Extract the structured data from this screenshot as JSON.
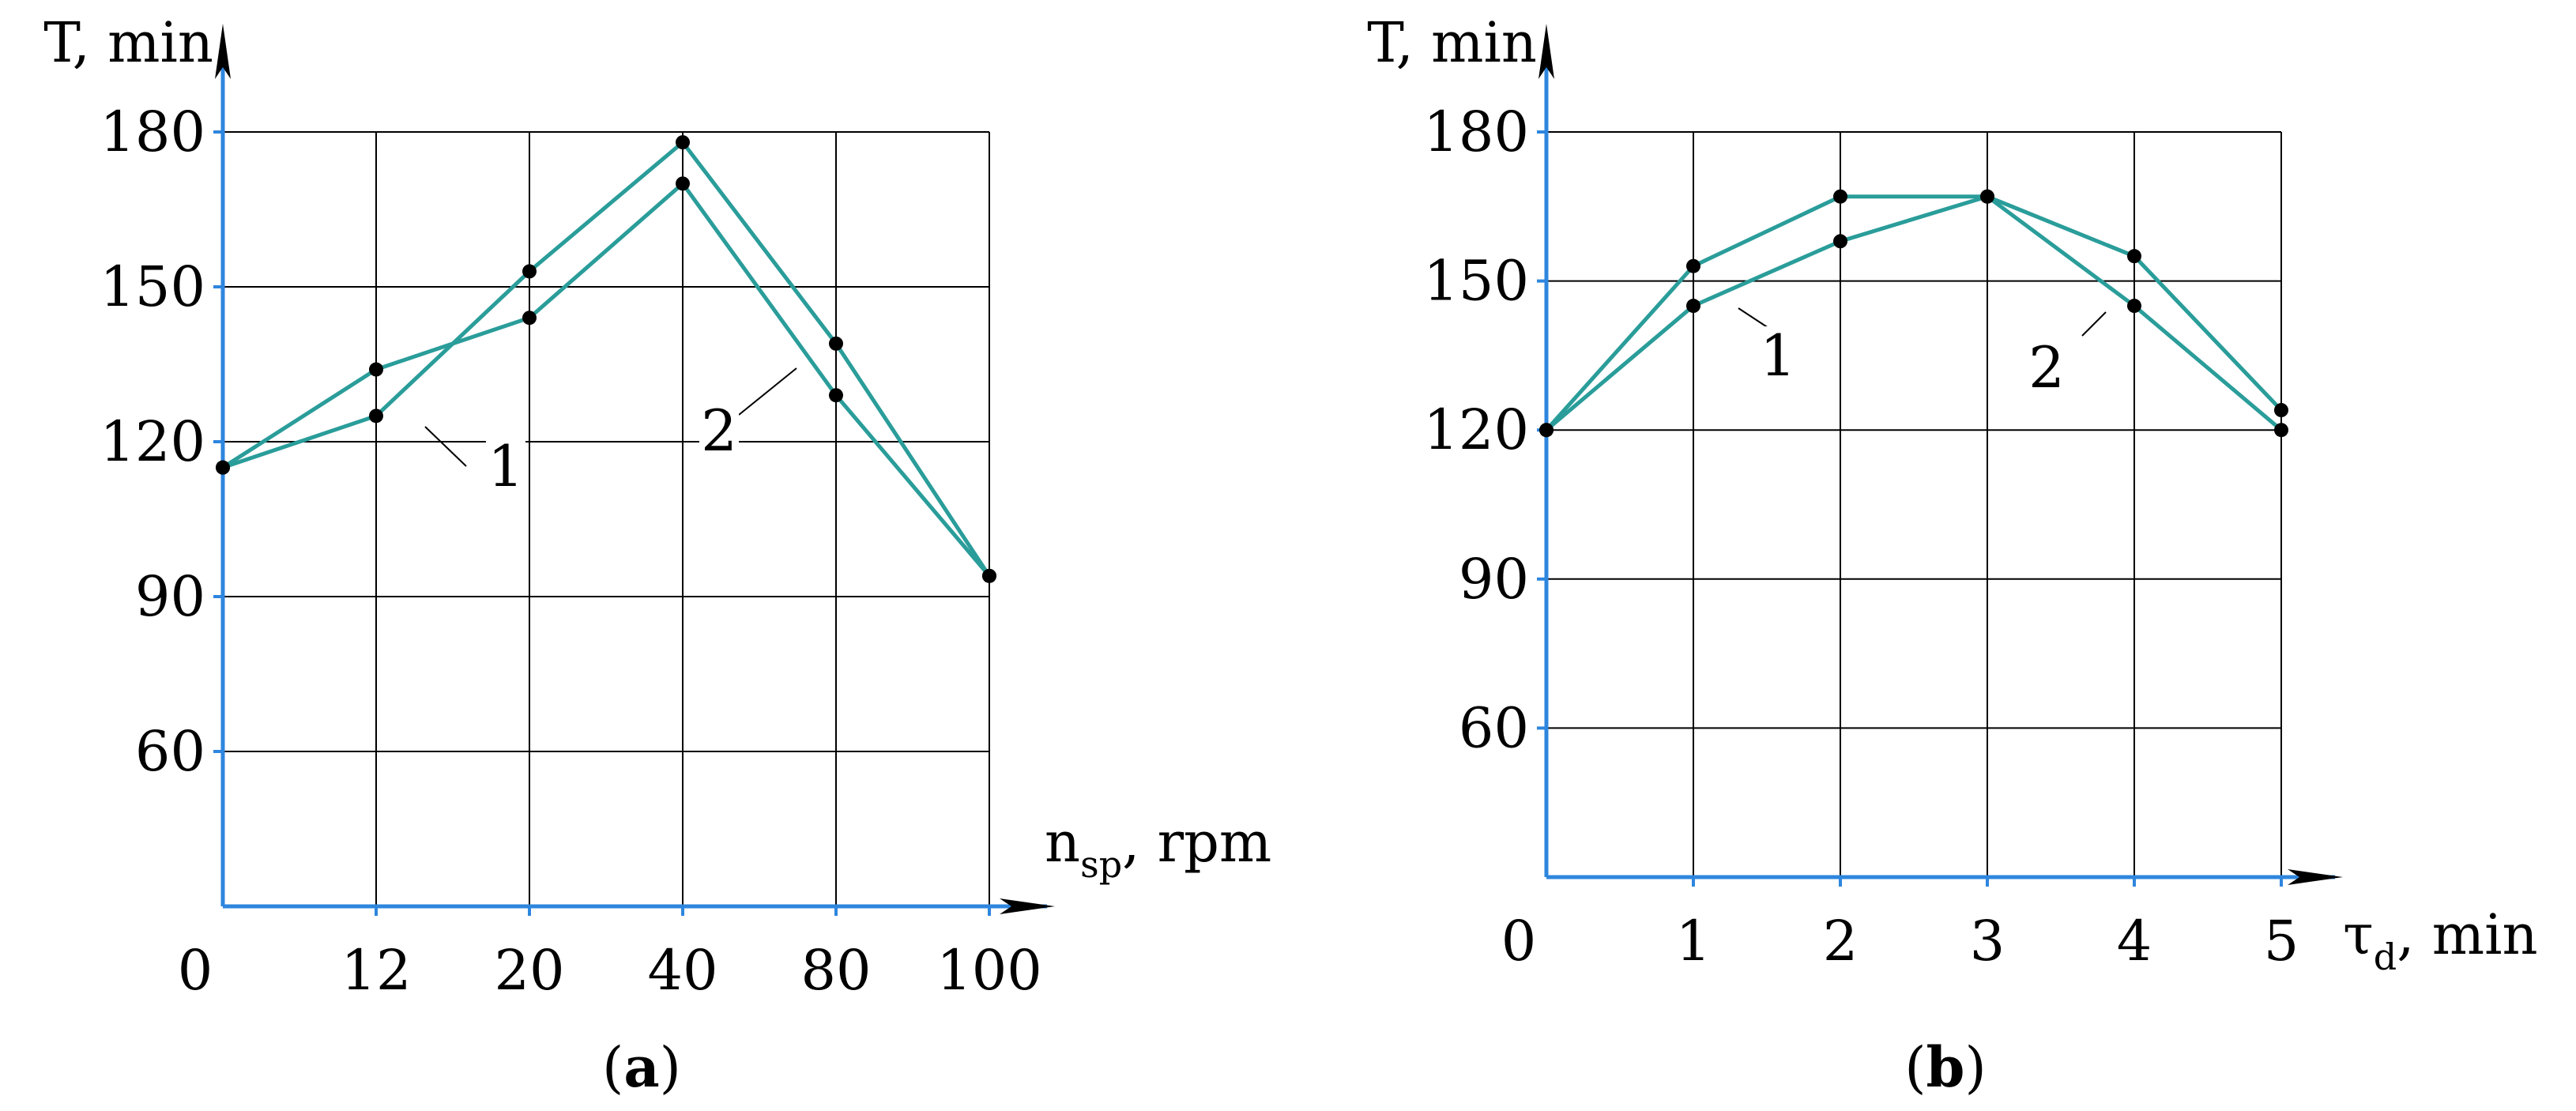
{
  "colors": {
    "series": "#2a9d9a",
    "axis": "#2e86de",
    "grid": "#000000",
    "marker": "#000000"
  },
  "chart_data": [
    {
      "type": "line",
      "panel_label": "a",
      "ylabel": "T, min",
      "xlabel_main": "n",
      "xlabel_sub": "sp",
      "xlabel_unit": ", rpm",
      "origin_label": "0",
      "categories": [
        "12",
        "20",
        "40",
        "80",
        "100"
      ],
      "x_positions": [
        0,
        1,
        2,
        3,
        4,
        5
      ],
      "yticks": [
        "60",
        "90",
        "120",
        "150",
        "180"
      ],
      "ytick_values": [
        60,
        90,
        120,
        150,
        180
      ],
      "ylim": [
        30,
        180
      ],
      "xlim": [
        0,
        5
      ],
      "grid": true,
      "series": [
        {
          "name": "1",
          "x": [
            0,
            1,
            2,
            3,
            4,
            5
          ],
          "values": [
            115,
            134,
            144,
            170,
            129,
            94
          ]
        },
        {
          "name": "2",
          "x": [
            0,
            1,
            2,
            3,
            4,
            5
          ],
          "values": [
            115,
            125,
            153,
            178,
            139,
            94
          ]
        }
      ]
    },
    {
      "type": "line",
      "panel_label": "b",
      "ylabel": "T, min",
      "xlabel_main": "τ",
      "xlabel_sub": "d",
      "xlabel_unit": ", min",
      "origin_label": "0",
      "categories": [
        "1",
        "2",
        "3",
        "4",
        "5"
      ],
      "x_positions": [
        0,
        1,
        2,
        3,
        4,
        5
      ],
      "yticks": [
        "60",
        "90",
        "120",
        "150",
        "180"
      ],
      "ytick_values": [
        60,
        90,
        120,
        150,
        180
      ],
      "ylim": [
        30,
        180
      ],
      "xlim": [
        0,
        5
      ],
      "grid": true,
      "series": [
        {
          "name": "1",
          "x": [
            0,
            1,
            2,
            3,
            4,
            5
          ],
          "values": [
            120,
            145,
            158,
            167,
            145,
            120
          ]
        },
        {
          "name": "2",
          "x": [
            0,
            1,
            2,
            3,
            4,
            5
          ],
          "values": [
            120,
            153,
            167,
            167,
            155,
            124
          ]
        }
      ]
    }
  ]
}
